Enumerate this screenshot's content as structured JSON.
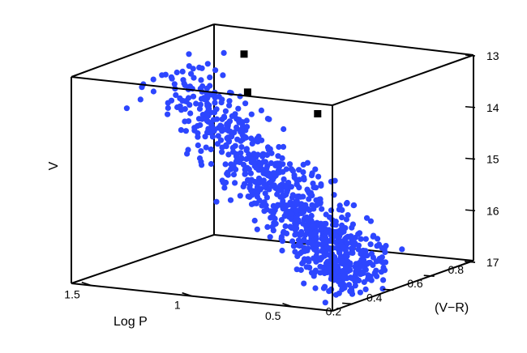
{
  "chart_data": {
    "type": "scatter",
    "title": "",
    "axes": {
      "x": {
        "label": "Log P",
        "range": [
          0.3,
          1.6
        ],
        "ticks": [
          1.5,
          1,
          0.5
        ],
        "tick_labels": [
          "1.5",
          "1",
          "0.5"
        ]
      },
      "y": {
        "label": "(V−R)",
        "range": [
          0.1,
          0.8
        ],
        "ticks": [
          0.2,
          0.4,
          0.6,
          0.8
        ],
        "tick_labels": [
          "0.2",
          "0.4",
          "0.6",
          "0.8"
        ]
      },
      "z": {
        "label": "V",
        "range": [
          13,
          17
        ],
        "inverted": true,
        "ticks": [
          13,
          14,
          15,
          16,
          17
        ],
        "tick_labels": [
          "13",
          "14",
          "15",
          "16",
          "17"
        ]
      }
    },
    "grid": false,
    "legend": null,
    "colors": {
      "series_blue": "#2d46ff",
      "series_black": "#000000",
      "box": "#000000"
    },
    "series": [
      {
        "marker": "circle",
        "color": "#2d46ff",
        "trend": {
          "logP": [
            1.48,
            0.42
          ],
          "VR": [
            0.46,
            0.36
          ],
          "V": [
            13.3,
            16.8
          ],
          "n_points": 900,
          "scatter_V": 0.16,
          "scatter_logP": 0.03,
          "scatter_VR": 0.08
        },
        "points": [
          {
            "logP": 1.45,
            "VR": 0.47,
            "V": 13.35
          },
          {
            "logP": 1.41,
            "VR": 0.5,
            "V": 13.4
          },
          {
            "logP": 1.36,
            "VR": 0.5,
            "V": 13.5
          },
          {
            "logP": 1.3,
            "VR": 0.47,
            "V": 13.7
          },
          {
            "logP": 1.25,
            "VR": 0.43,
            "V": 13.85
          },
          {
            "logP": 1.2,
            "VR": 0.48,
            "V": 13.9
          },
          {
            "logP": 1.18,
            "VR": 0.4,
            "V": 14.05
          },
          {
            "logP": 1.12,
            "VR": 0.45,
            "V": 14.1
          },
          {
            "logP": 1.08,
            "VR": 0.52,
            "V": 14.0
          },
          {
            "logP": 1.02,
            "VR": 0.38,
            "V": 14.3
          }
        ]
      },
      {
        "marker": "square",
        "color": "#000000",
        "points": [
          {
            "logP": 1.4,
            "VR": 0.75,
            "V": 13.35
          },
          {
            "logP": 1.25,
            "VR": 0.62,
            "V": 13.85
          },
          {
            "logP": 0.8,
            "VR": 0.52,
            "V": 13.95
          }
        ]
      }
    ]
  }
}
